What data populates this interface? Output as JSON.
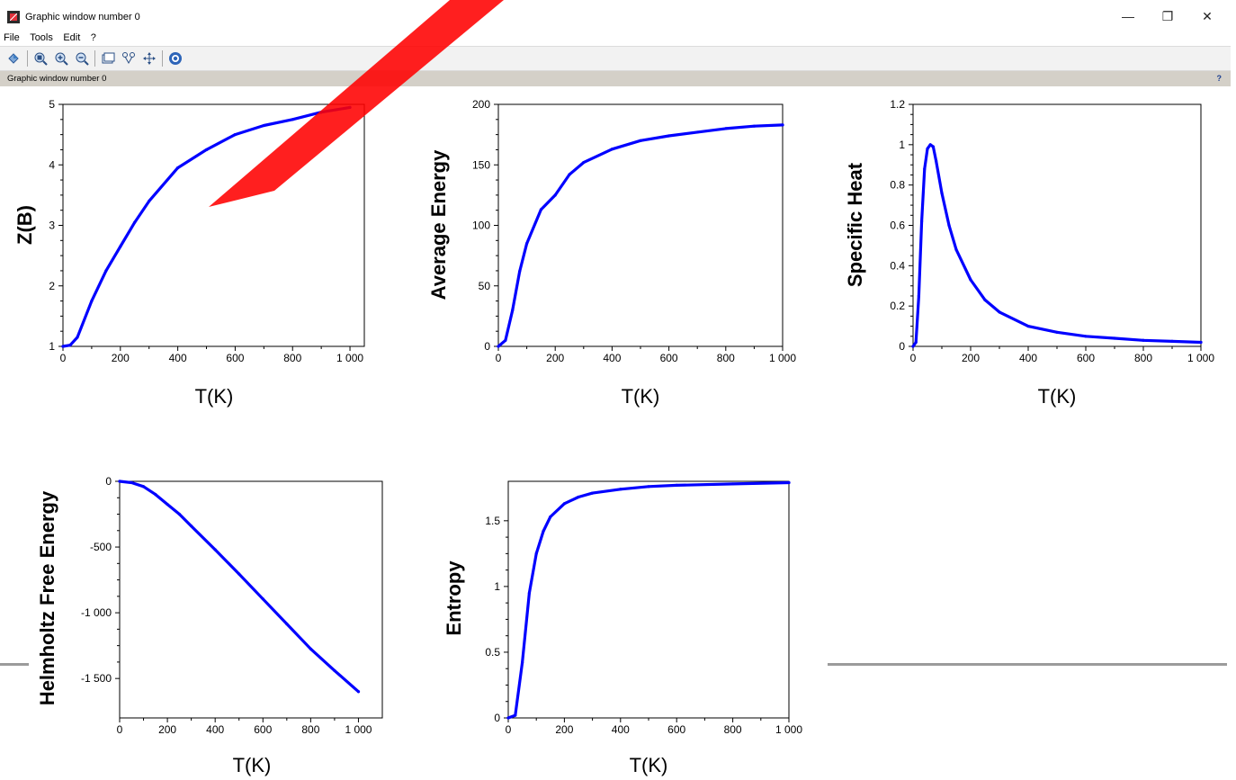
{
  "window": {
    "title": "Graphic window number 0",
    "minimize_glyph": "—",
    "restore_glyph": "❐",
    "close_glyph": "✕"
  },
  "menu": [
    {
      "label": "File"
    },
    {
      "label": "Tools"
    },
    {
      "label": "Edit"
    },
    {
      "label": "?"
    }
  ],
  "toolbar": {
    "buttons": [
      {
        "icon": "rotate-icon"
      },
      {
        "icon": "zoom-icon"
      },
      {
        "icon": "zoom-in-icon"
      },
      {
        "icon": "zoom-out-icon"
      },
      {
        "icon": "window-icon"
      },
      {
        "icon": "datatip-icon"
      },
      {
        "icon": "pan-icon"
      },
      {
        "icon": "help-icon"
      }
    ]
  },
  "infobar": {
    "label": "Graphic window number 0",
    "help": "?"
  },
  "style": {
    "line_color": "#0000ff",
    "watermark_color": "#ff0000"
  },
  "chart_data": [
    {
      "type": "line",
      "xlabel": "T(K)",
      "ylabel": "Z(B)",
      "xlim": [
        0,
        1050
      ],
      "ylim": [
        1,
        5
      ],
      "xticks": [
        0,
        200,
        400,
        600,
        800,
        1000
      ],
      "xtick_labels": [
        "0",
        "200",
        "400",
        "600",
        "800",
        "1 000"
      ],
      "yticks": [
        1,
        2,
        3,
        4,
        5
      ],
      "ytick_labels": [
        "1",
        "2",
        "3",
        "4",
        "5"
      ],
      "x": [
        0,
        25,
        50,
        100,
        150,
        200,
        250,
        300,
        400,
        500,
        600,
        700,
        800,
        900,
        1000
      ],
      "y": [
        1.0,
        1.02,
        1.15,
        1.75,
        2.25,
        2.65,
        3.05,
        3.4,
        3.95,
        4.25,
        4.5,
        4.65,
        4.75,
        4.87,
        4.95
      ]
    },
    {
      "type": "line",
      "xlabel": "T(K)",
      "ylabel": "Average Energy",
      "xlim": [
        0,
        1000
      ],
      "ylim": [
        0,
        200
      ],
      "xticks": [
        0,
        200,
        400,
        600,
        800,
        1000
      ],
      "xtick_labels": [
        "0",
        "200",
        "400",
        "600",
        "800",
        "1 000"
      ],
      "yticks": [
        0,
        50,
        100,
        150,
        200
      ],
      "ytick_labels": [
        "0",
        "50",
        "100",
        "150",
        "200"
      ],
      "x": [
        0,
        25,
        50,
        75,
        100,
        150,
        200,
        250,
        300,
        400,
        500,
        600,
        700,
        800,
        900,
        1000
      ],
      "y": [
        0,
        5,
        30,
        62,
        85,
        113,
        125,
        142,
        152,
        163,
        170,
        174,
        177,
        180,
        182,
        183
      ]
    },
    {
      "type": "line",
      "xlabel": "T(K)",
      "ylabel": "Specific Heat",
      "xlim": [
        0,
        1000
      ],
      "ylim": [
        0,
        1.2
      ],
      "xticks": [
        0,
        200,
        400,
        600,
        800,
        1000
      ],
      "xtick_labels": [
        "0",
        "200",
        "400",
        "600",
        "800",
        "1 000"
      ],
      "yticks": [
        0,
        0.2,
        0.4,
        0.6,
        0.8,
        1.0,
        1.2
      ],
      "ytick_labels": [
        "0",
        "0.2",
        "0.4",
        "0.6",
        "0.8",
        "1",
        "1.2"
      ],
      "x": [
        0,
        10,
        20,
        30,
        40,
        50,
        60,
        70,
        80,
        100,
        125,
        150,
        200,
        250,
        300,
        400,
        500,
        600,
        700,
        800,
        900,
        1000
      ],
      "y": [
        0,
        0.02,
        0.25,
        0.62,
        0.88,
        0.98,
        1.0,
        0.99,
        0.92,
        0.76,
        0.6,
        0.48,
        0.33,
        0.23,
        0.17,
        0.1,
        0.07,
        0.05,
        0.04,
        0.03,
        0.025,
        0.02
      ]
    },
    {
      "type": "line",
      "xlabel": "T(K)",
      "ylabel": "Helmholtz Free Energy",
      "xlim": [
        0,
        1100
      ],
      "ylim": [
        -1800,
        0
      ],
      "xticks": [
        0,
        200,
        400,
        600,
        800,
        1000
      ],
      "xtick_labels": [
        "0",
        "200",
        "400",
        "600",
        "800",
        "1 000"
      ],
      "yticks": [
        0,
        -500,
        -1000,
        -1500
      ],
      "ytick_labels": [
        "0",
        "-500",
        "-1 000",
        "-1 500"
      ],
      "x": [
        0,
        50,
        100,
        150,
        200,
        250,
        300,
        400,
        500,
        600,
        700,
        800,
        900,
        1000
      ],
      "y": [
        0,
        -10,
        -40,
        -100,
        -175,
        -250,
        -340,
        -520,
        -705,
        -895,
        -1085,
        -1275,
        -1440,
        -1600
      ]
    },
    {
      "type": "line",
      "xlabel": "T(K)",
      "ylabel": "Entropy",
      "xlim": [
        0,
        1000
      ],
      "ylim": [
        0,
        1.8
      ],
      "xticks": [
        0,
        200,
        400,
        600,
        800,
        1000
      ],
      "xtick_labels": [
        "0",
        "200",
        "400",
        "600",
        "800",
        "1 000"
      ],
      "yticks": [
        0,
        0.5,
        1.0,
        1.5
      ],
      "ytick_labels": [
        "0",
        "0.5",
        "1",
        "1.5"
      ],
      "x": [
        0,
        25,
        50,
        75,
        100,
        125,
        150,
        200,
        250,
        300,
        400,
        500,
        600,
        800,
        1000
      ],
      "y": [
        0,
        0.02,
        0.42,
        0.95,
        1.25,
        1.42,
        1.53,
        1.63,
        1.68,
        1.71,
        1.74,
        1.76,
        1.77,
        1.78,
        1.79
      ]
    }
  ]
}
